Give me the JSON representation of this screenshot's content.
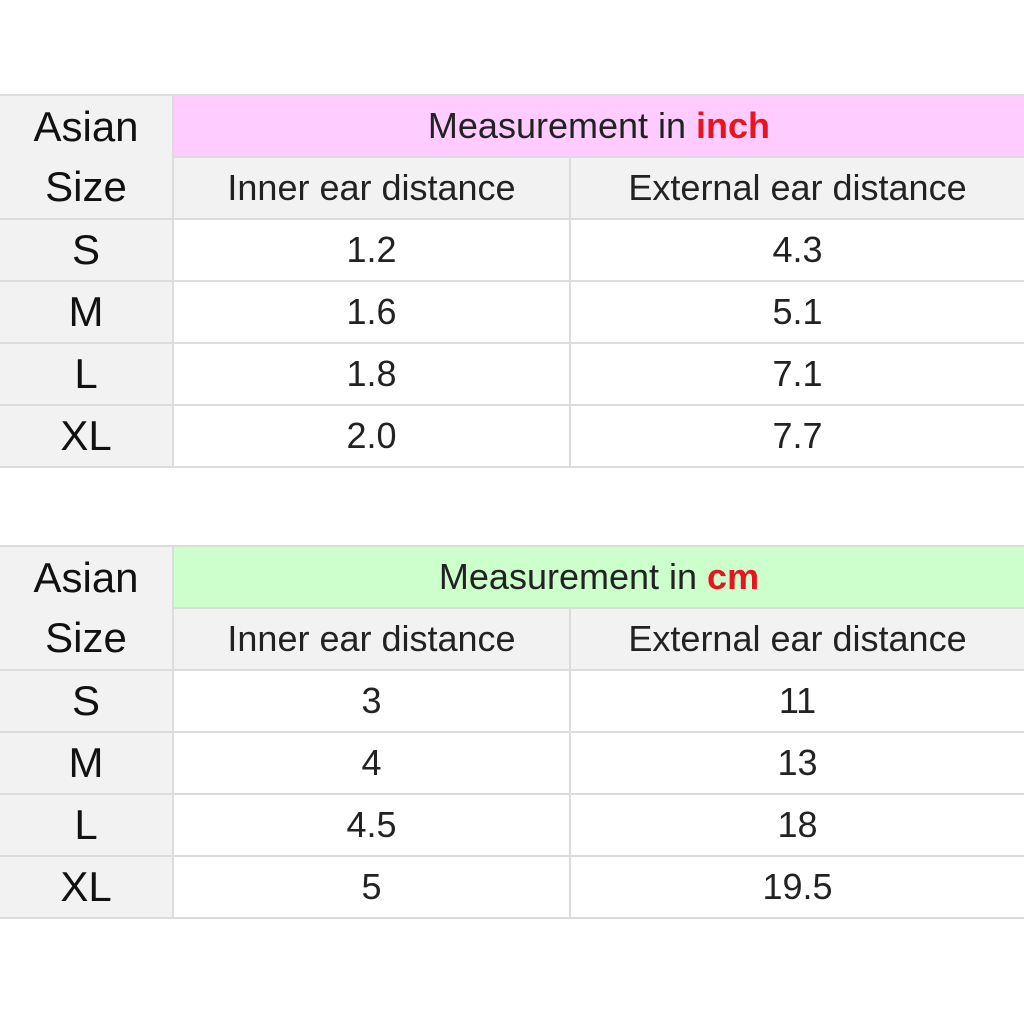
{
  "tables": [
    {
      "size_header_line1": "Asian",
      "size_header_line2": "Size",
      "title_prefix": "Measurement in ",
      "unit": "inch",
      "title_bg": "#ffccff",
      "columns": [
        "Inner ear distance",
        "External ear distance"
      ],
      "rows": [
        {
          "size": "S",
          "inner": "1.2",
          "external": "4.3"
        },
        {
          "size": "M",
          "inner": "1.6",
          "external": "5.1"
        },
        {
          "size": "L",
          "inner": "1.8",
          "external": "7.1"
        },
        {
          "size": "XL",
          "inner": "2.0",
          "external": "7.7"
        }
      ]
    },
    {
      "size_header_line1": "Asian",
      "size_header_line2": "Size",
      "title_prefix": "Measurement in ",
      "unit": "cm",
      "title_bg": "#ccffcc",
      "columns": [
        "Inner ear distance",
        "External ear distance"
      ],
      "rows": [
        {
          "size": "S",
          "inner": "3",
          "external": "11"
        },
        {
          "size": "M",
          "inner": "4",
          "external": "13"
        },
        {
          "size": "L",
          "inner": "4.5",
          "external": "18"
        },
        {
          "size": "XL",
          "inner": "5",
          "external": "19.5"
        }
      ]
    }
  ],
  "unit_color": "#e8141e"
}
